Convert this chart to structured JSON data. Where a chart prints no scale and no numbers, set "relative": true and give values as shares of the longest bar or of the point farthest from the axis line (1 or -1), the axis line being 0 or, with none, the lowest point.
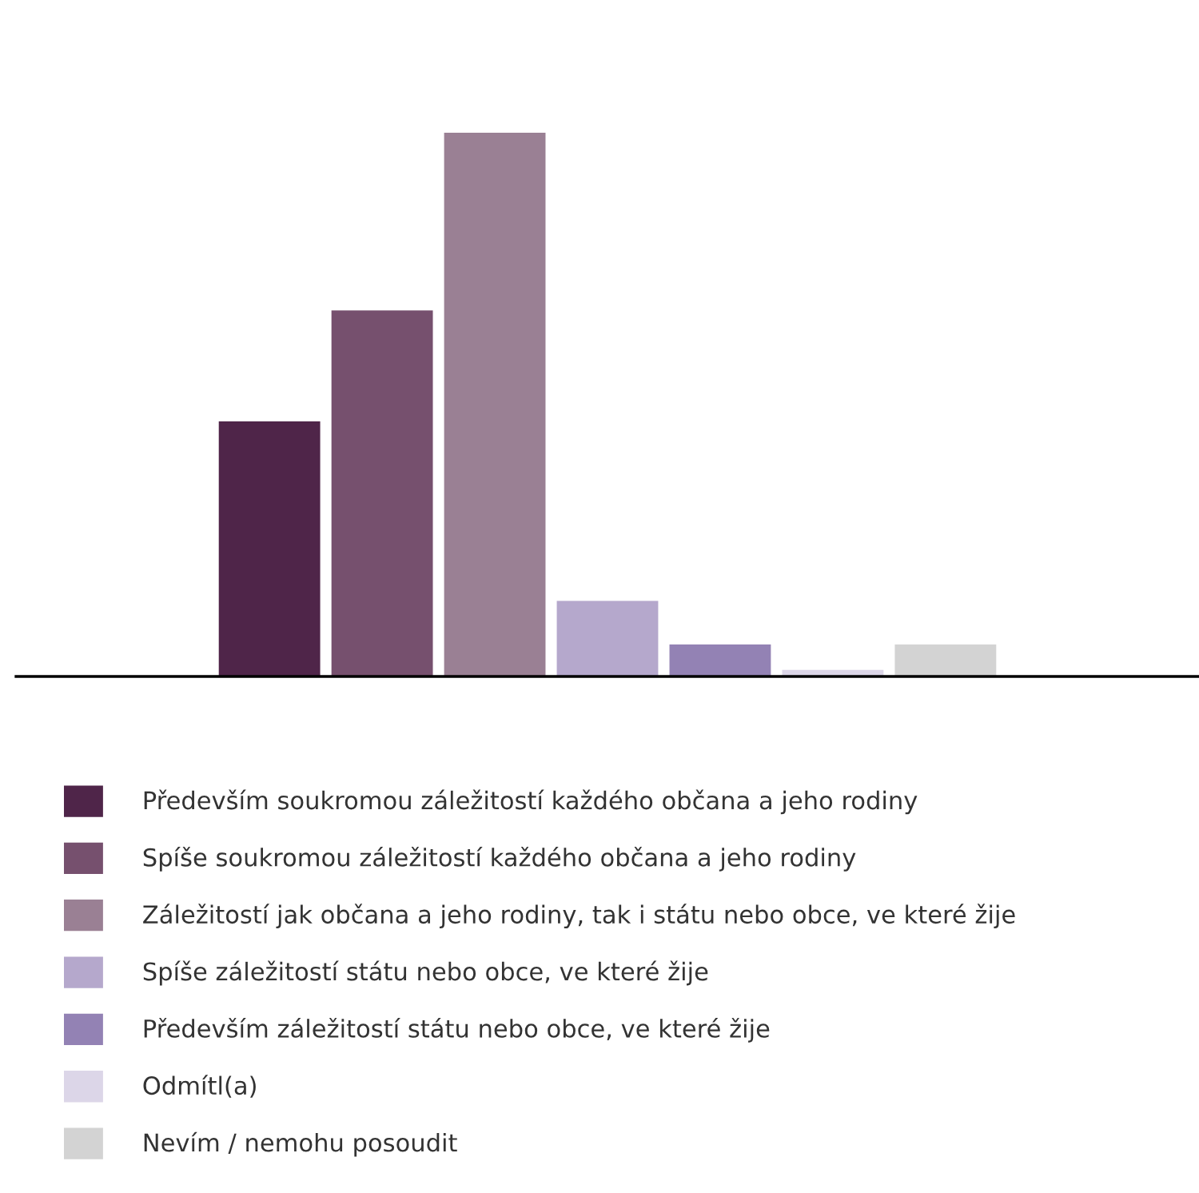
{
  "chart_data": {
    "type": "bar",
    "relative": true,
    "categories": [
      null
    ],
    "legend": "bottom",
    "grid": false,
    "series": [
      {
        "name": "Především soukromou záležitostí každého občana a jeho rodiny",
        "color": "#4f2549",
        "values": [
          0.469
        ]
      },
      {
        "name": "Spíše soukromou záležitostí každého občana a jeho rodiny",
        "color": "#76506e",
        "values": [
          0.673
        ]
      },
      {
        "name": "Záležitostí jak občana a jeho rodiny, tak i státu nebo obce, ve které žije",
        "color": "#9a8094",
        "values": [
          1
        ]
      },
      {
        "name": "Spíše záležitostí státu nebo obce, ve které žije",
        "color": "#b5a8cc",
        "values": [
          0.139
        ]
      },
      {
        "name": "Především záležitostí státu nebo obce, ve které žije",
        "color": "#9382b4",
        "values": [
          0.059
        ]
      },
      {
        "name": "Odmítl(a)",
        "color": "#dcd6e8",
        "values": [
          0.012
        ]
      },
      {
        "name": "Nevím / nemohu posoudit",
        "color": "#d3d3d3",
        "values": [
          0.059
        ]
      }
    ]
  }
}
